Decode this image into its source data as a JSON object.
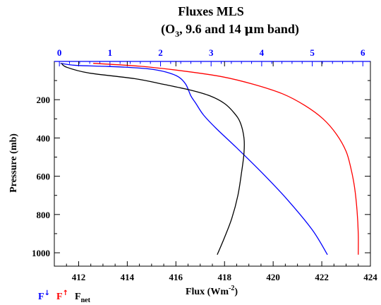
{
  "chart_data": {
    "type": "line",
    "title": "Fluxes MLS",
    "subtitle": {
      "open": "(O",
      "sub": "3",
      "rest_a": ", 9.6 and 14 ",
      "mu": "μ",
      "rest_b": "m band)"
    },
    "xlabel": {
      "main": "Flux (Wm",
      "sup": "-2",
      "close": ")"
    },
    "ylabel": "Pressure (mb)",
    "bottom_axis": {
      "range": [
        411,
        424
      ],
      "ticks": [
        412,
        414,
        416,
        418,
        420,
        422,
        424
      ],
      "tick_labels": [
        "412",
        "414",
        "416",
        "418",
        "420",
        "422",
        "424"
      ],
      "color": "#000000"
    },
    "top_axis": {
      "range": [
        -0.1,
        6.15
      ],
      "ticks": [
        0,
        1,
        2,
        3,
        4,
        5,
        6
      ],
      "tick_labels": [
        "0",
        "1",
        "2",
        "3",
        "4",
        "5",
        "6"
      ],
      "color": "#0000ff"
    },
    "y_axis": {
      "range": [
        0,
        1070
      ],
      "reversed": true,
      "ticks": [
        200,
        400,
        600,
        800,
        1000
      ],
      "tick_labels": [
        "200",
        "400",
        "600",
        "800",
        "1000"
      ]
    },
    "grid": false,
    "legend_position": "bottom-left",
    "series": [
      {
        "key": "down",
        "legend": "F",
        "legend_sup": "↓",
        "legend_sub": "",
        "color": "#0000ff",
        "axis": "top",
        "x": [
          0.02,
          0.3,
          0.8,
          1.3,
          1.8,
          2.1,
          2.35,
          2.5,
          2.6,
          2.7,
          2.85,
          3.1,
          3.5,
          4.0,
          4.5,
          5.0,
          5.3
        ],
        "y": [
          10,
          20,
          25,
          30,
          40,
          55,
          80,
          120,
          180,
          220,
          280,
          350,
          450,
          580,
          720,
          880,
          1010
        ]
      },
      {
        "key": "up",
        "legend": "F",
        "legend_sup": "↑",
        "legend_sub": "",
        "color": "#ff0000",
        "axis": "bottom",
        "x": [
          412.6,
          414.5,
          416.3,
          417.9,
          419.2,
          420.4,
          421.3,
          422.05,
          422.6,
          423.0,
          423.2,
          423.35,
          423.45,
          423.5,
          423.5
        ],
        "y": [
          10,
          25,
          50,
          80,
          120,
          170,
          230,
          300,
          380,
          470,
          560,
          660,
          780,
          900,
          1010
        ]
      },
      {
        "key": "net",
        "legend": "F",
        "legend_sup": "",
        "legend_sub": "net",
        "color": "#000000",
        "axis": "bottom",
        "x": [
          411.3,
          411.5,
          412.4,
          414.3,
          415.5,
          416.6,
          417.4,
          418.0,
          418.4,
          418.65,
          418.8,
          418.8,
          418.7,
          418.55,
          418.3,
          418.0,
          417.7
        ],
        "y": [
          10,
          30,
          60,
          90,
          120,
          150,
          180,
          220,
          270,
          320,
          400,
          480,
          580,
          700,
          820,
          920,
          1010
        ]
      }
    ]
  }
}
